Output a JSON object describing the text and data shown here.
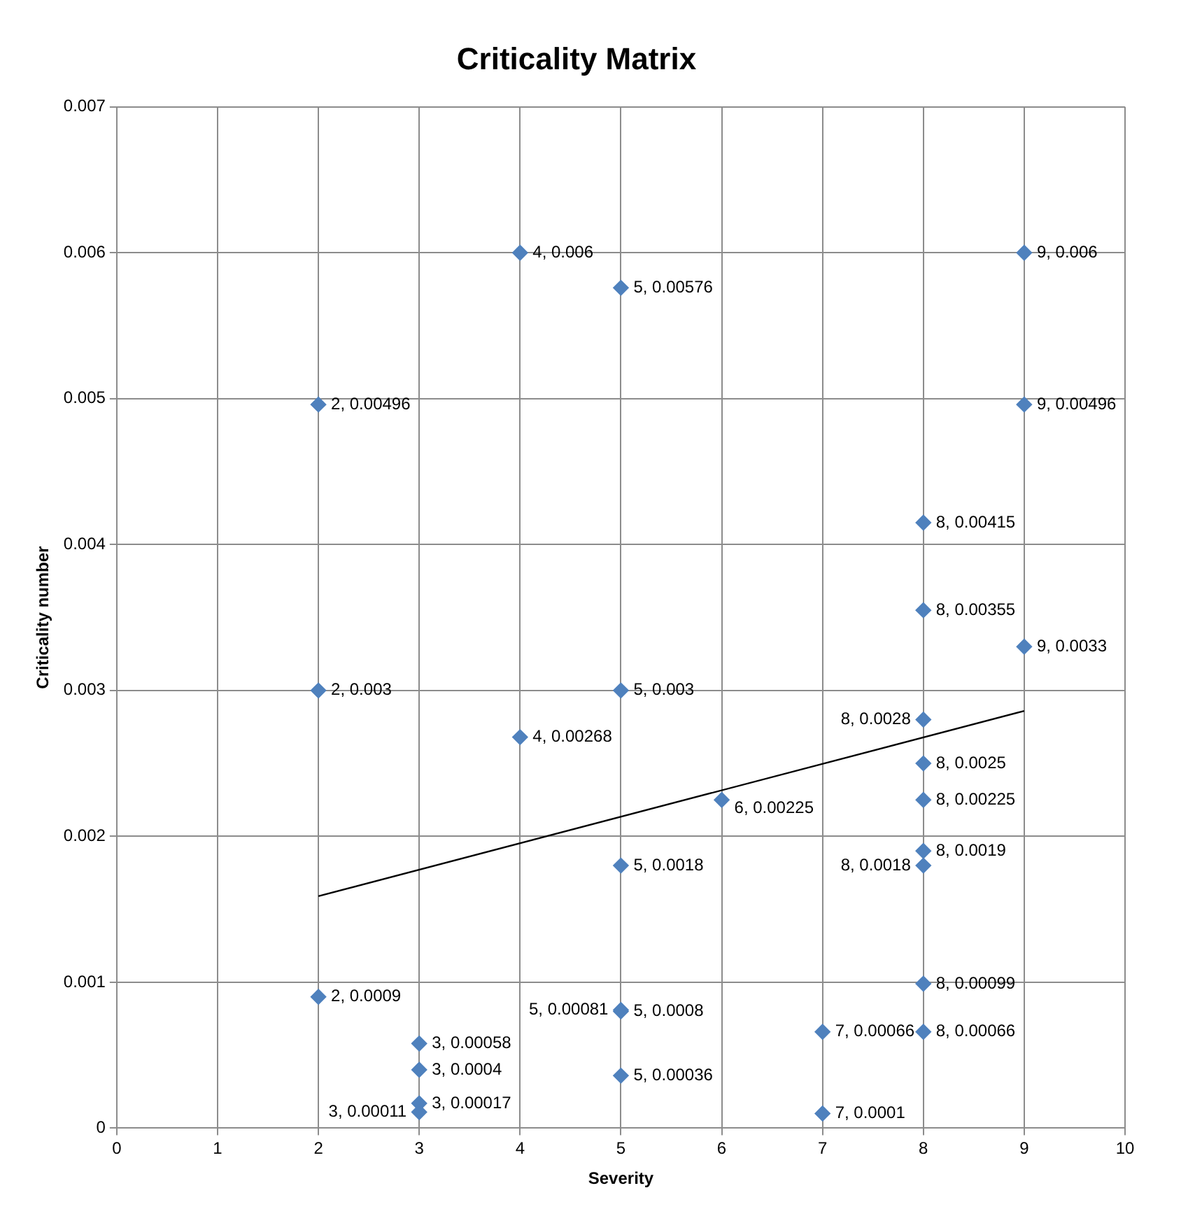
{
  "chart_data": {
    "type": "scatter",
    "title": "Criticality Matrix",
    "xlabel": "Severity",
    "ylabel": "Criticality number",
    "xlim": [
      0,
      10
    ],
    "xticks": [
      0,
      1,
      2,
      3,
      4,
      5,
      6,
      7,
      8,
      9,
      10
    ],
    "ylim": [
      0,
      0.007
    ],
    "yticks": [
      0,
      0.001,
      0.002,
      0.003,
      0.004,
      0.005,
      0.006,
      0.007
    ],
    "grid": true,
    "legend": false,
    "series": [
      {
        "color": "#4f81bd",
        "marker": "diamond",
        "x": [
          4,
          9,
          5,
          2,
          9,
          8,
          8,
          9,
          2,
          5,
          4,
          8,
          8,
          6,
          8,
          8,
          8,
          5,
          2,
          8,
          5,
          5,
          7,
          8,
          3,
          3,
          5,
          3,
          3,
          7
        ],
        "values": [
          0.006,
          0.006,
          0.00576,
          0.00496,
          0.00496,
          0.00415,
          0.00355,
          0.0033,
          0.003,
          0.003,
          0.00268,
          0.0028,
          0.0025,
          0.00225,
          0.00225,
          0.0019,
          0.0018,
          0.0018,
          0.0009,
          0.00099,
          0.0008,
          0.00081,
          0.00066,
          0.00066,
          0.00058,
          0.0004,
          0.00036,
          0.00017,
          0.00011,
          0.0001
        ],
        "value_labels": [
          "4, 0.006",
          "9, 0.006",
          "5, 0.00576",
          "2, 0.00496",
          "9, 0.00496",
          "8, 0.00415",
          "8, 0.00355",
          "9, 0.0033",
          "2, 0.003",
          "5, 0.003",
          "4, 0.00268",
          "8, 0.0028",
          "8, 0.0025",
          "6, 0.00225",
          "8, 0.00225",
          "8, 0.0019",
          "8, 0.0018",
          "5, 0.0018",
          "2, 0.0009",
          "8, 0.00099",
          "5, 0.0008",
          "5, 0.00081",
          "7, 0.00066",
          "8, 0.00066",
          "3, 0.00058",
          "3, 0.0004",
          "5, 0.00036",
          "3, 0.00017",
          "3, 0.00011",
          "7, 0.0001"
        ]
      },
      {
        "type": "line",
        "color": "#000000",
        "marker": "none",
        "x": [
          2,
          9
        ],
        "values": [
          0.00159,
          0.00286
        ]
      }
    ]
  }
}
